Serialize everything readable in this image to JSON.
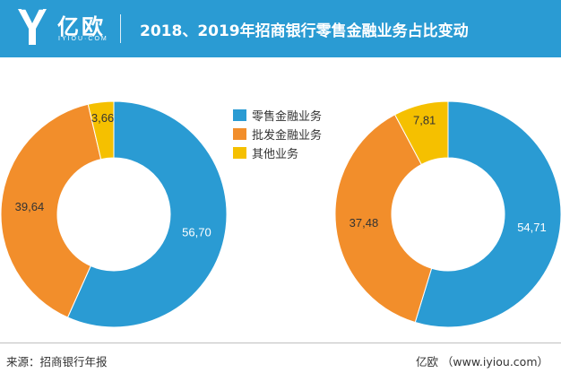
{
  "header": {
    "logo_name": "亿欧",
    "logo_domain": "IYIOU·COM",
    "title": "2018、2019年招商银行零售金融业务占比变动"
  },
  "colors": {
    "header_bg": "#2a9bd3",
    "retail": "#2a9bd3",
    "wholesale": "#f28e2b",
    "other": "#f5c000"
  },
  "chart_data": {
    "type": "pie",
    "style": "donut",
    "legend_position": "center-top",
    "legend": [
      "零售金融业务",
      "批发金融业务",
      "其他业务"
    ],
    "charts": [
      {
        "values": [
          56.7,
          39.64,
          3.66
        ],
        "labels": [
          "56,70",
          "39,64",
          "3,66"
        ]
      },
      {
        "values": [
          54.71,
          37.48,
          7.81
        ],
        "labels": [
          "54,71",
          "37,48",
          "7,81"
        ]
      }
    ]
  },
  "footer": {
    "source": "来源：招商银行年报",
    "brand": "亿欧 （www.iyiou.com）"
  }
}
